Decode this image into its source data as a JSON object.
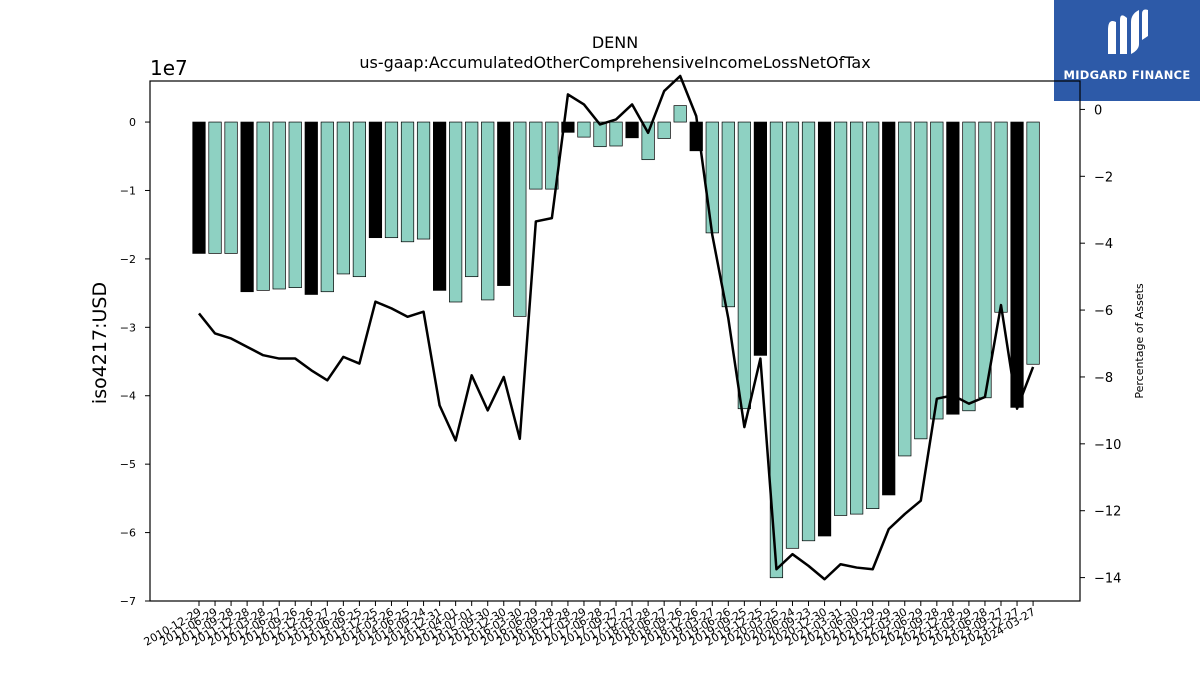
{
  "brand": {
    "name": "MIDGARD FINANCE",
    "logo_icon": "midgard-m-icon",
    "bg_color": "#2d5aa8"
  },
  "chart_data": {
    "type": "bar",
    "title": "DENN",
    "subtitle": "us-gaap:AccumulatedOtherComprehensiveIncomeLossNetOfTax",
    "ylabel": "iso4217:USD",
    "y_scale_label": "1e7",
    "y2label": "Percentage of Assets",
    "ylim": [
      -7,
      0.6
    ],
    "y2lim": [
      -14.7,
      0.85
    ],
    "yticks": [
      0,
      -1,
      -2,
      -3,
      -4,
      -5,
      -6,
      -7
    ],
    "y2ticks": [
      0,
      -2,
      -4,
      -6,
      -8,
      -10,
      -12,
      -14
    ],
    "grid": false,
    "colors": {
      "teal": "#8ed1c2",
      "black": "#000000",
      "line": "#000000"
    },
    "categories": [
      "2010-12-29",
      "2011-06-29",
      "2011-09-28",
      "2011-12-28",
      "2012-03-28",
      "2012-06-27",
      "2012-09-26",
      "2012-12-26",
      "2013-03-27",
      "2013-06-26",
      "2013-09-25",
      "2013-12-25",
      "2014-03-26",
      "2014-06-25",
      "2014-09-24",
      "2014-12-31",
      "2015-04-01",
      "2015-07-01",
      "2015-09-30",
      "2015-12-30",
      "2016-03-30",
      "2016-06-29",
      "2016-09-28",
      "2016-12-28",
      "2017-03-29",
      "2017-06-28",
      "2017-09-27",
      "2017-12-27",
      "2018-03-28",
      "2018-06-27",
      "2018-09-26",
      "2018-12-26",
      "2019-03-27",
      "2019-06-26",
      "2019-09-25",
      "2019-12-25",
      "2020-03-25",
      "2020-06-24",
      "2020-09-23",
      "2020-12-30",
      "2021-03-31",
      "2021-06-30",
      "2021-09-29",
      "2021-12-29",
      "2022-03-30",
      "2022-06-29",
      "2022-09-28",
      "2022-12-28",
      "2023-03-29",
      "2023-06-28",
      "2023-09-27",
      "2023-12-27",
      "2024-03-27"
    ],
    "x_tick_labels": [
      "2010-12-29",
      "2011-06-29",
      "2011-09-28",
      "2011-12-28",
      "2012-03-28",
      "2012-06-27",
      "2012-09-26",
      "2012-12-26",
      "2013-03-27",
      "2013-06-26",
      "2013-09-25",
      "2013-12-25",
      "2014-03-26",
      "2014-06-25",
      "2014-09-24",
      "2014-12-31",
      "2015-04-01",
      "2015-07-01",
      "2015-09-30",
      "2015-12-30",
      "2016-03-30",
      "2016-06-29",
      "2016-09-28",
      "2016-12-28",
      "2017-03-29",
      "2017-06-28",
      "2017-09-27",
      "2017-12-27",
      "2018-03-28",
      "2018-06-27",
      "2018-09-26",
      "2018-12-26",
      "2019-03-27",
      "2019-06-26",
      "2019-09-25",
      "2019-12-25",
      "2020-03-25",
      "2020-06-24",
      "2020-09-23",
      "2020-12-30",
      "2021-03-31",
      "2021-06-30",
      "2021-09-29",
      "2021-12-29",
      "2022-03-30",
      "2022-06-29",
      "2022-09-28",
      "2022-12-28",
      "2023-03-29",
      "2023-06-28",
      "2023-09-27",
      "2023-12-27",
      "2024-03-27"
    ],
    "values": [
      -1.92,
      -1.92,
      -1.92,
      -2.48,
      -2.46,
      -2.44,
      -2.42,
      -2.52,
      -2.48,
      -2.22,
      -2.26,
      -1.69,
      -1.69,
      -1.75,
      -1.71,
      -2.46,
      -2.63,
      -2.26,
      -2.6,
      -2.39,
      -2.84,
      -0.98,
      -0.98,
      -0.15,
      -0.22,
      -0.36,
      -0.35,
      -0.23,
      -0.55,
      -0.24,
      0.24,
      -0.42,
      -1.62,
      -2.7,
      -4.19,
      -3.41,
      -6.66,
      -6.23,
      -6.12,
      -6.05,
      -5.75,
      -5.73,
      -5.65,
      -5.45,
      -4.88,
      -4.63,
      -4.34,
      -4.27,
      -4.22,
      -4.03,
      -2.78,
      -4.17,
      -3.54
    ],
    "bar_colors": [
      "black",
      "teal",
      "teal",
      "black",
      "teal",
      "teal",
      "teal",
      "black",
      "teal",
      "teal",
      "teal",
      "black",
      "teal",
      "teal",
      "teal",
      "black",
      "teal",
      "teal",
      "teal",
      "black",
      "teal",
      "teal",
      "teal",
      "black",
      "teal",
      "teal",
      "teal",
      "black",
      "teal",
      "teal",
      "teal",
      "black",
      "teal",
      "teal",
      "teal",
      "black",
      "teal",
      "teal",
      "teal",
      "black",
      "teal",
      "teal",
      "teal",
      "black",
      "teal",
      "teal",
      "teal",
      "black",
      "teal",
      "teal",
      "teal",
      "black",
      "teal"
    ],
    "line_values": [
      -6.1,
      -6.7,
      -6.85,
      -7.1,
      -7.35,
      -7.45,
      -7.45,
      -7.8,
      -8.1,
      -7.4,
      -7.6,
      -5.75,
      -5.95,
      -6.2,
      -6.05,
      -8.85,
      -9.9,
      -7.95,
      -9.0,
      -8.0,
      -9.85,
      -3.35,
      -3.25,
      0.45,
      0.15,
      -0.45,
      -0.3,
      0.15,
      -0.7,
      0.55,
      1.0,
      -0.2,
      -3.75,
      -6.25,
      -9.5,
      -7.45,
      -13.75,
      -13.3,
      -13.65,
      -14.05,
      -13.6,
      -13.7,
      -13.75,
      -12.55,
      -12.1,
      -11.7,
      -8.65,
      -8.55,
      -8.8,
      -8.6,
      -5.85,
      -8.95,
      -7.7
    ]
  }
}
